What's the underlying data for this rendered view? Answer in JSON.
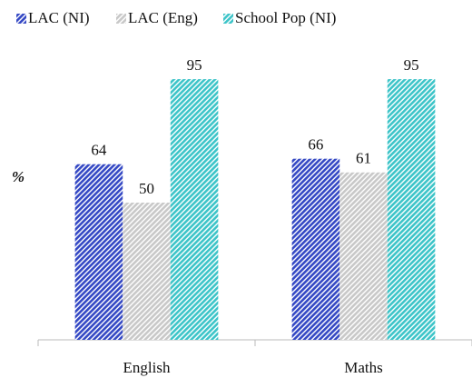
{
  "chart_data": {
    "type": "bar",
    "y_label": "%",
    "categories": [
      "English",
      "Maths"
    ],
    "series": [
      {
        "name": "LAC (NI)",
        "color": "#3448c4",
        "values": [
          64,
          66
        ]
      },
      {
        "name": "LAC (Eng)",
        "color": "#c8c8c8",
        "values": [
          50,
          61
        ]
      },
      {
        "name": "School Pop (NI)",
        "color": "#3cc4c8",
        "values": [
          95,
          95
        ]
      }
    ],
    "ylim": [
      0,
      100
    ],
    "legend": "top"
  }
}
